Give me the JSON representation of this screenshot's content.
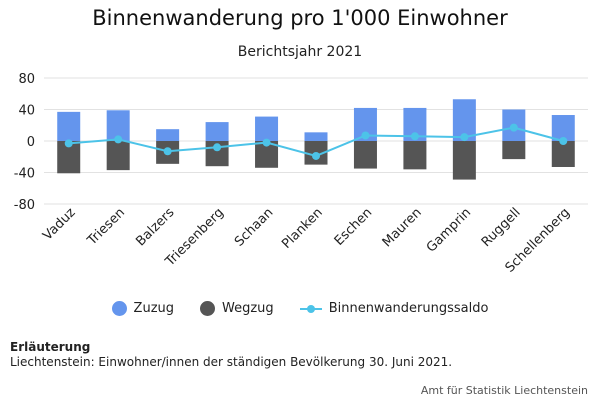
{
  "header": {
    "title": "Binnenwanderung pro 1'000 Einwohner",
    "subtitle": "Berichtsjahr 2021"
  },
  "chart_data": {
    "type": "bar",
    "categories": [
      "Vaduz",
      "Triesen",
      "Balzers",
      "Triesenberg",
      "Schaan",
      "Planken",
      "Eschen",
      "Mauren",
      "Gamprin",
      "Ruggell",
      "Schellenberg"
    ],
    "series": [
      {
        "name": "Zuzug",
        "type": "bar",
        "color": "#6495ed",
        "values": [
          37,
          39,
          15,
          24,
          31,
          11,
          42,
          42,
          53,
          40,
          33
        ]
      },
      {
        "name": "Wegzug",
        "type": "bar",
        "color": "#555555",
        "values": [
          -41,
          -37,
          -29,
          -32,
          -34,
          -30,
          -35,
          -36,
          -49,
          -23,
          -33
        ]
      },
      {
        "name": "Binnenwanderungssaldo",
        "type": "line",
        "color": "#4cc3e8",
        "values": [
          -3,
          2,
          -13,
          -8,
          -2,
          -19,
          7,
          6,
          5,
          17,
          0
        ]
      }
    ],
    "yticks": [
      80,
      40,
      0,
      -40,
      -80
    ],
    "ylim": [
      -80,
      80
    ],
    "grid": true,
    "legend": "bottom"
  },
  "legend": {
    "items": [
      {
        "label": "Zuzug",
        "icon": "dot",
        "color": "#6495ed"
      },
      {
        "label": "Wegzug",
        "icon": "dot",
        "color": "#555555"
      },
      {
        "label": "Binnenwanderungssaldo",
        "icon": "line-marker",
        "color": "#4cc3e8"
      }
    ]
  },
  "notes": {
    "heading": "Erläuterung",
    "text": "Liechtenstein: Einwohner/innen der ständigen Bevölkerung 30. Juni 2021."
  },
  "source": "Amt für Statistik Liechtenstein"
}
